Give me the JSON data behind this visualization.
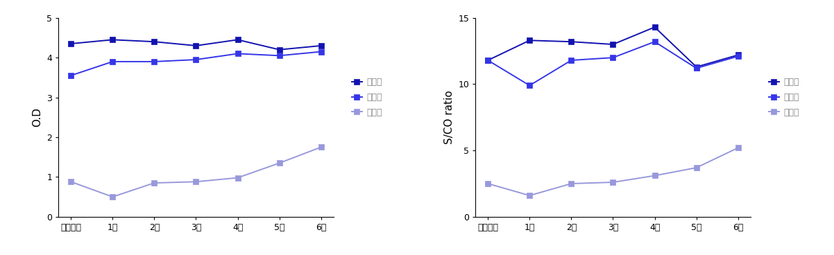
{
  "x_labels": [
    "제조당시",
    "1차",
    "2차",
    "3차",
    "4차",
    "5차",
    "6차"
  ],
  "left_chart": {
    "ylabel": "O.D",
    "ylim": [
      0,
      5
    ],
    "yticks": [
      0,
      1,
      2,
      3,
      4,
      5
    ],
    "series": [
      {
        "label": "고농도",
        "color": "#1212b0",
        "values": [
          4.35,
          4.45,
          4.4,
          4.3,
          4.45,
          4.2,
          4.3
        ]
      },
      {
        "label": "중농도",
        "color": "#3535e8",
        "values": [
          3.55,
          3.9,
          3.9,
          3.95,
          4.1,
          4.05,
          4.15
        ]
      },
      {
        "label": "저농도",
        "color": "#9898dc",
        "values": [
          0.88,
          0.5,
          0.85,
          0.88,
          0.98,
          1.35,
          1.75
        ]
      }
    ]
  },
  "right_chart": {
    "ylabel": "S/CO ratio",
    "ylim": [
      0,
      15
    ],
    "yticks": [
      0,
      5,
      10,
      15
    ],
    "series": [
      {
        "label": "고농도",
        "color": "#1212b0",
        "values": [
          11.8,
          13.3,
          13.2,
          13.0,
          14.3,
          11.3,
          12.2
        ]
      },
      {
        "label": "중농도",
        "color": "#3535e8",
        "values": [
          11.8,
          9.9,
          11.8,
          12.0,
          13.2,
          11.2,
          12.1
        ]
      },
      {
        "label": "저농도",
        "color": "#9898dc",
        "values": [
          2.5,
          1.6,
          2.5,
          2.6,
          3.1,
          3.7,
          5.2
        ]
      }
    ]
  },
  "background_color": "#ffffff",
  "marker": "s",
  "markersize": 6,
  "linewidth": 1.4,
  "legend_fontsize": 9,
  "tick_fontsize": 9,
  "ylabel_fontsize": 11
}
